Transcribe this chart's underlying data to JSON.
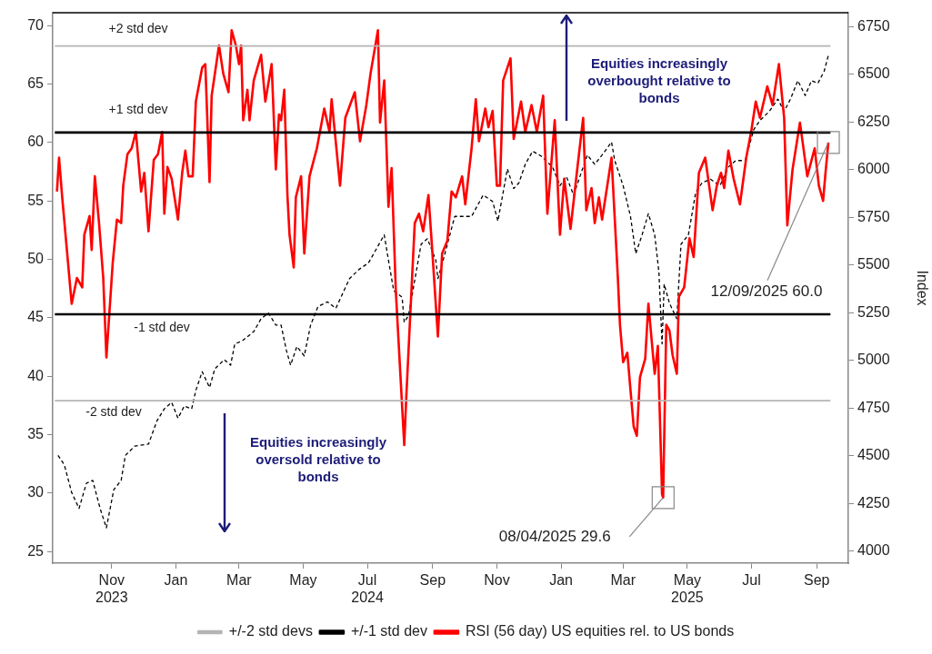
{
  "chart_data": {
    "type": "line",
    "marker": "none",
    "grid": false,
    "legend": "bottom",
    "xlim": [
      "2023-09-06",
      "2025-10-01"
    ],
    "xticks": [
      {
        "value": "2023-11-01",
        "label": "Nov\n2023"
      },
      {
        "value": "2024-01-01",
        "label": "Jan"
      },
      {
        "value": "2024-03-01",
        "label": "Mar"
      },
      {
        "value": "2024-05-01",
        "label": "May"
      },
      {
        "value": "2024-07-01",
        "label": "Jul\n2024"
      },
      {
        "value": "2024-09-01",
        "label": "Sep"
      },
      {
        "value": "2024-11-01",
        "label": "Nov"
      },
      {
        "value": "2025-01-01",
        "label": "Jan"
      },
      {
        "value": "2025-03-01",
        "label": "Mar"
      },
      {
        "value": "2025-05-01",
        "label": "May\n2025"
      },
      {
        "value": "2025-07-01",
        "label": "Jul"
      },
      {
        "value": "2025-09-01",
        "label": "Sep"
      }
    ],
    "ylim": [
      24,
      71.1
    ],
    "yticks": [
      25,
      30,
      35,
      40,
      45,
      50,
      55,
      60,
      65,
      70
    ],
    "y2lim": [
      3937,
      6823
    ],
    "y2ticks": [
      4000,
      4250,
      4500,
      4750,
      5000,
      5250,
      5500,
      5750,
      6000,
      6250,
      6500,
      6750
    ],
    "y2label": "Index",
    "annotations": [
      "Equities increasingly overbought relative to bonds",
      "Equities increasingly oversold relative to bonds",
      "+2 std dev",
      "+1 std dev",
      "-1 std dev",
      "-2 std dev",
      {
        "text": "12/09/2025 60.0",
        "x": "2025-09-12",
        "y": 60.0
      },
      {
        "text": "08/04/2025 29.6",
        "x": "2025-04-08",
        "y": 29.6
      }
    ],
    "series": [
      {
        "name": "+/-2 std devs",
        "color": "#b4b4b4",
        "x": [
          "2023-09-08",
          "2025-09-14"
        ],
        "values": [
          68.25,
          68.25
        ]
      },
      {
        "color": "#b4b4b4",
        "x": [
          "2023-09-08",
          "2025-09-14"
        ],
        "values": [
          37.9,
          37.9
        ]
      },
      {
        "name": "+/-1 std dev",
        "color": "#000000",
        "x": [
          "2023-09-08",
          "2025-09-14"
        ],
        "values": [
          60.85,
          60.85
        ]
      },
      {
        "color": "#000000",
        "x": [
          "2023-09-08",
          "2025-09-14"
        ],
        "values": [
          45.3,
          45.3
        ]
      },
      {
        "name": "RSI (56 day) US equities rel. to US bonds",
        "color": "#ff0000",
        "line_style": "solid",
        "x": [
          "2023-09-10",
          "2023-09-12",
          "2023-09-15",
          "2023-09-24",
          "2023-09-29",
          "2023-10-04",
          "2023-10-06",
          "2023-10-11",
          "2023-10-13",
          "2023-10-16",
          "2023-10-20",
          "2023-10-24",
          "2023-10-27",
          "2023-11-02",
          "2023-11-06",
          "2023-11-10",
          "2023-11-12",
          "2023-11-16",
          "2023-11-20",
          "2023-11-24",
          "2023-11-29",
          "2023-12-02",
          "2023-12-06",
          "2023-12-11",
          "2023-12-15",
          "2023-12-19",
          "2023-12-21",
          "2023-12-24",
          "2023-12-28",
          "2024-01-03",
          "2024-01-07",
          "2024-01-10",
          "2024-01-13",
          "2024-01-17",
          "2024-01-20",
          "2024-01-26",
          "2024-01-29",
          "2024-02-02",
          "2024-02-04",
          "2024-02-11",
          "2024-02-15",
          "2024-02-20",
          "2024-02-23",
          "2024-02-27",
          "2024-03-01",
          "2024-03-03",
          "2024-03-05",
          "2024-03-09",
          "2024-03-11",
          "2024-03-15",
          "2024-03-22",
          "2024-03-26",
          "2024-04-01",
          "2024-04-05",
          "2024-04-08",
          "2024-04-10",
          "2024-04-13",
          "2024-04-16",
          "2024-04-18",
          "2024-04-22",
          "2024-04-24",
          "2024-04-29",
          "2024-05-02",
          "2024-05-07",
          "2024-05-14",
          "2024-05-21",
          "2024-05-26",
          "2024-05-28",
          "2024-06-05",
          "2024-06-10",
          "2024-06-19",
          "2024-06-24",
          "2024-06-30",
          "2024-07-04",
          "2024-07-11",
          "2024-07-13",
          "2024-07-17",
          "2024-07-21",
          "2024-07-24",
          "2024-07-28",
          "2024-08-05",
          "2024-08-07",
          "2024-08-10",
          "2024-08-15",
          "2024-08-19",
          "2024-08-23",
          "2024-08-28",
          "2024-08-31",
          "2024-09-06",
          "2024-09-10",
          "2024-09-15",
          "2024-09-19",
          "2024-09-23",
          "2024-09-29",
          "2024-10-02",
          "2024-10-08",
          "2024-10-12",
          "2024-10-15",
          "2024-10-21",
          "2024-10-24",
          "2024-10-28",
          "2024-11-01",
          "2024-11-04",
          "2024-11-07",
          "2024-11-14",
          "2024-11-17",
          "2024-11-24",
          "2024-11-28",
          "2024-12-04",
          "2024-12-09",
          "2024-12-15",
          "2024-12-19",
          "2024-12-26",
          "2024-12-31",
          "2025-01-04",
          "2025-01-10",
          "2025-01-16",
          "2025-01-22",
          "2025-01-25",
          "2025-01-30",
          "2025-02-02",
          "2025-02-06",
          "2025-02-09",
          "2025-02-18",
          "2025-02-24",
          "2025-02-26",
          "2025-03-01",
          "2025-03-05",
          "2025-03-08",
          "2025-03-11",
          "2025-03-14",
          "2025-03-17",
          "2025-03-22",
          "2025-03-25",
          "2025-03-31",
          "2025-04-03",
          "2025-04-07",
          "2025-04-08",
          "2025-04-11",
          "2025-04-14",
          "2025-04-17",
          "2025-04-21",
          "2025-04-23",
          "2025-04-28",
          "2025-05-03",
          "2025-05-07",
          "2025-05-12",
          "2025-05-18",
          "2025-05-25",
          "2025-05-29",
          "2025-06-02",
          "2025-06-05",
          "2025-06-09",
          "2025-06-14",
          "2025-06-20",
          "2025-06-26",
          "2025-07-01",
          "2025-07-05",
          "2025-07-09",
          "2025-07-16",
          "2025-07-21",
          "2025-07-27",
          "2025-08-01",
          "2025-08-04",
          "2025-08-09",
          "2025-08-16",
          "2025-08-23",
          "2025-08-30",
          "2025-09-03",
          "2025-09-07",
          "2025-09-09",
          "2025-09-12"
        ],
        "values": [
          55.8,
          58.7,
          55.3,
          46.2,
          48.4,
          47.6,
          52.1,
          53.7,
          50.8,
          57.1,
          53.1,
          48.4,
          41.6,
          49.7,
          53.4,
          53.1,
          56.3,
          59.0,
          59.5,
          60.9,
          55.8,
          57.4,
          52.4,
          58.5,
          59.0,
          60.9,
          53.9,
          57.9,
          56.9,
          53.4,
          57.4,
          59.3,
          57.1,
          57.1,
          63.5,
          66.4,
          66.7,
          56.6,
          64.0,
          68.3,
          65.9,
          64.3,
          69.6,
          68.3,
          66.7,
          68.3,
          61.9,
          64.5,
          61.9,
          65.3,
          67.5,
          63.5,
          66.7,
          57.7,
          62.4,
          61.9,
          64.5,
          55.5,
          52.1,
          49.3,
          55.3,
          57.1,
          50.5,
          57.1,
          59.5,
          62.9,
          60.9,
          63.7,
          56.3,
          62.1,
          64.3,
          60.1,
          63.2,
          65.9,
          69.6,
          61.7,
          65.3,
          54.5,
          57.8,
          47.3,
          34.1,
          38.3,
          43.9,
          53.1,
          53.9,
          52.4,
          55.5,
          51.6,
          43.4,
          50.5,
          51.6,
          55.8,
          55.3,
          57.1,
          54.7,
          59.5,
          63.7,
          60.1,
          62.9,
          61.3,
          62.7,
          56.3,
          56.3,
          65.3,
          67.2,
          60.3,
          63.5,
          60.9,
          63.2,
          60.9,
          64.0,
          53.9,
          61.9,
          52.1,
          56.9,
          52.6,
          57.4,
          62.1,
          54.2,
          56.1,
          53.1,
          55.3,
          53.4,
          58.7,
          48.4,
          44.4,
          41.2,
          42.0,
          38.8,
          35.7,
          34.9,
          39.9,
          41.5,
          46.2,
          40.2,
          42.6,
          29.9,
          29.6,
          44.4,
          43.9,
          41.8,
          40.2,
          46.8,
          47.6,
          51.8,
          50.2,
          57.4,
          58.7,
          54.2,
          56.3,
          57.4,
          56.1,
          59.3,
          56.9,
          54.7,
          58.7,
          61.1,
          63.5,
          62.1,
          64.8,
          63.2,
          66.7,
          62.1,
          52.9,
          57.7,
          61.7,
          57.1,
          59.5,
          56.3,
          55.0,
          57.1,
          60.0
        ]
      },
      {
        "color": "#000000",
        "axis": "y2",
        "line_style": "dashed",
        "x": [
          "2023-09-11",
          "2023-09-17",
          "2023-09-24",
          "2023-10-01",
          "2023-10-08",
          "2023-10-14",
          "2023-10-21",
          "2023-10-27",
          "2023-11-03",
          "2023-11-10",
          "2023-11-14",
          "2023-11-23",
          "2023-12-06",
          "2023-12-14",
          "2023-12-21",
          "2023-12-28",
          "2024-01-03",
          "2024-01-09",
          "2024-01-16",
          "2024-01-20",
          "2024-01-26",
          "2024-02-02",
          "2024-02-07",
          "2024-02-16",
          "2024-02-22",
          "2024-02-26",
          "2024-03-04",
          "2024-03-15",
          "2024-03-22",
          "2024-03-29",
          "2024-04-05",
          "2024-04-10",
          "2024-04-15",
          "2024-04-19",
          "2024-04-25",
          "2024-05-02",
          "2024-05-08",
          "2024-05-15",
          "2024-05-24",
          "2024-06-01",
          "2024-06-14",
          "2024-06-23",
          "2024-07-02",
          "2024-07-17",
          "2024-07-21",
          "2024-07-26",
          "2024-08-03",
          "2024-08-05",
          "2024-08-09",
          "2024-08-21",
          "2024-08-27",
          "2024-09-04",
          "2024-09-06",
          "2024-09-11",
          "2024-09-22",
          "2024-10-08",
          "2024-10-19",
          "2024-10-28",
          "2024-11-02",
          "2024-11-07",
          "2024-11-11",
          "2024-11-17",
          "2024-11-22",
          "2024-11-28",
          "2024-12-05",
          "2024-12-13",
          "2024-12-24",
          "2024-12-31",
          "2025-01-06",
          "2025-01-13",
          "2025-01-19",
          "2025-01-26",
          "2025-02-02",
          "2025-02-09",
          "2025-02-18",
          "2025-02-21",
          "2025-03-01",
          "2025-03-08",
          "2025-03-13",
          "2025-03-19",
          "2025-03-25",
          "2025-03-31",
          "2025-04-04",
          "2025-04-07",
          "2025-04-09",
          "2025-04-14",
          "2025-04-21",
          "2025-04-25",
          "2025-05-02",
          "2025-05-09",
          "2025-05-15",
          "2025-05-23",
          "2025-06-01",
          "2025-06-09",
          "2025-06-16",
          "2025-06-25",
          "2025-07-03",
          "2025-07-09",
          "2025-07-18",
          "2025-07-26",
          "2025-08-01",
          "2025-08-07",
          "2025-08-14",
          "2025-08-21",
          "2025-08-27",
          "2025-09-02",
          "2025-09-08",
          "2025-09-12"
        ],
        "values": [
          4502,
          4453,
          4307,
          4224,
          4356,
          4371,
          4224,
          4122,
          4322,
          4371,
          4502,
          4551,
          4561,
          4683,
          4746,
          4780,
          4697,
          4761,
          4746,
          4843,
          4941,
          4858,
          4956,
          5004,
          4975,
          5087,
          5102,
          5151,
          5219,
          5248,
          5185,
          5185,
          5053,
          4975,
          5073,
          5024,
          5185,
          5282,
          5307,
          5273,
          5429,
          5477,
          5511,
          5658,
          5526,
          5365,
          5331,
          5200,
          5234,
          5609,
          5638,
          5526,
          5429,
          5526,
          5755,
          5755,
          5867,
          5833,
          5731,
          5882,
          6004,
          5901,
          5931,
          6028,
          6097,
          6072,
          6014,
          5916,
          5965,
          5867,
          5965,
          6077,
          6028,
          6077,
          6145,
          6048,
          5916,
          5755,
          5560,
          5658,
          5770,
          5658,
          5463,
          5087,
          5400,
          5300,
          5219,
          5609,
          5658,
          5882,
          5931,
          5950,
          5916,
          6014,
          6048,
          6048,
          6209,
          6258,
          6306,
          6370,
          6306,
          6370,
          6467,
          6389,
          6467,
          6453,
          6516,
          6599
        ]
      }
    ]
  }
}
